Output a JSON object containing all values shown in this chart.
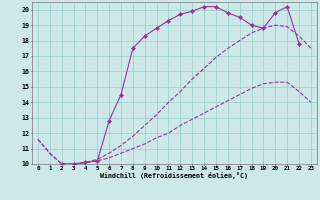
{
  "xlabel": "Windchill (Refroidissement éolien,°C)",
  "bg_color": "#cce8e8",
  "line_color": "#993399",
  "grid_color": "#99cccc",
  "xmin": -0.5,
  "xmax": 23.5,
  "ymin": 10,
  "ymax": 20.5,
  "yticks": [
    10,
    11,
    12,
    13,
    14,
    15,
    16,
    17,
    18,
    19,
    20
  ],
  "xticks": [
    0,
    1,
    2,
    3,
    4,
    5,
    6,
    7,
    8,
    9,
    10,
    11,
    12,
    13,
    14,
    15,
    16,
    17,
    18,
    19,
    20,
    21,
    22,
    23
  ],
  "line1_x": [
    0,
    1,
    2,
    3,
    4,
    5,
    6,
    7,
    8,
    9,
    10,
    11,
    12,
    13,
    14,
    15,
    16,
    17,
    18,
    19,
    20,
    21,
    22,
    23
  ],
  "line1_y": [
    11.6,
    10.7,
    10.0,
    10.0,
    10.1,
    10.2,
    10.4,
    10.7,
    11.0,
    11.3,
    11.7,
    12.0,
    12.5,
    12.9,
    13.3,
    13.7,
    14.1,
    14.5,
    14.9,
    15.2,
    15.3,
    15.3,
    14.7,
    14.0
  ],
  "line2_x": [
    0,
    1,
    2,
    3,
    4,
    5,
    6,
    7,
    8,
    9,
    10,
    11,
    12,
    13,
    14,
    15,
    16,
    17,
    18,
    19,
    20,
    21,
    22,
    23
  ],
  "line2_y": [
    11.6,
    10.7,
    10.0,
    10.0,
    10.1,
    10.3,
    10.7,
    11.2,
    11.8,
    12.5,
    13.2,
    14.0,
    14.7,
    15.5,
    16.2,
    16.9,
    17.5,
    18.0,
    18.5,
    18.8,
    19.0,
    18.9,
    18.3,
    17.5
  ],
  "line3_x": [
    2,
    3,
    4,
    5,
    6,
    7,
    8,
    9,
    10,
    11,
    12,
    13,
    14,
    15,
    16,
    17,
    18,
    19,
    20,
    21,
    22
  ],
  "line3_y": [
    10.0,
    10.0,
    10.1,
    10.2,
    12.8,
    14.5,
    17.5,
    18.3,
    18.8,
    19.3,
    19.7,
    19.9,
    20.2,
    20.2,
    19.8,
    19.5,
    19.0,
    18.8,
    19.8,
    20.2,
    17.8
  ]
}
